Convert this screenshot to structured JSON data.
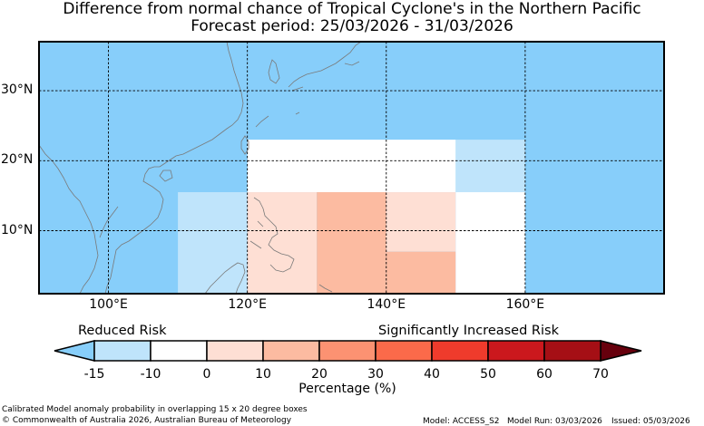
{
  "title": {
    "line1": "Difference from normal chance of Tropical Cyclone's in the Northern Pacific",
    "line2": "Forecast period: 25/03/2026 - 31/03/2026"
  },
  "map": {
    "lon_range": [
      90,
      180
    ],
    "lat_range": [
      1,
      37
    ],
    "background_color": "#87cefa",
    "lat_gridlines": [
      10,
      20,
      30
    ],
    "lon_gridlines": [
      100,
      120,
      140,
      160
    ],
    "lat_labels": [
      "10°N",
      "20°N",
      "30°N"
    ],
    "lon_labels": [
      "100°E",
      "120°E",
      "140°E",
      "160°E"
    ],
    "boxes": [
      {
        "lon": [
          110,
          120
        ],
        "lat": [
          1,
          15.5
        ],
        "color": "#bfe4fb"
      },
      {
        "lon": [
          120,
          150
        ],
        "lat": [
          15.5,
          23
        ],
        "color": "#ffffff"
      },
      {
        "lon": [
          120,
          130
        ],
        "lat": [
          1,
          15.5
        ],
        "color": "#fedfd4"
      },
      {
        "lon": [
          130,
          140
        ],
        "lat": [
          1,
          15.5
        ],
        "color": "#fcbba1"
      },
      {
        "lon": [
          140,
          150
        ],
        "lat": [
          7,
          15.5
        ],
        "color": "#fedfd4"
      },
      {
        "lon": [
          140,
          150
        ],
        "lat": [
          1,
          7
        ],
        "color": "#fcbba1"
      },
      {
        "lon": [
          150,
          160
        ],
        "lat": [
          15.5,
          23
        ],
        "color": "#bfe4fb"
      },
      {
        "lon": [
          150,
          160
        ],
        "lat": [
          1,
          15.5
        ],
        "color": "#ffffff"
      }
    ]
  },
  "colorbar": {
    "reduced_label": "Reduced Risk",
    "increased_label": "Significantly Increased Risk",
    "ticks": [
      "-15",
      "-10",
      "0",
      "10",
      "20",
      "30",
      "40",
      "50",
      "60",
      "70"
    ],
    "under_color": "#87cefa",
    "over_color": "#67000d",
    "colors": [
      "#bfe4fb",
      "#ffffff",
      "#fedfd4",
      "#fcbba1",
      "#fc9272",
      "#fb6a4a",
      "#ef3b2c",
      "#cb181d",
      "#a50f15"
    ],
    "xlabel": "Percentage (%)"
  },
  "footer": {
    "note": "Calibrated Model anomaly probability in overlapping 15 x 20 degree boxes",
    "copyright": "© Commonwealth of Australia 2026, Australian Bureau of Meteorology",
    "model": "Model: ACCESS_S2",
    "model_run": "Model Run: 03/03/2026",
    "issued": "Issued: 05/03/2026"
  }
}
